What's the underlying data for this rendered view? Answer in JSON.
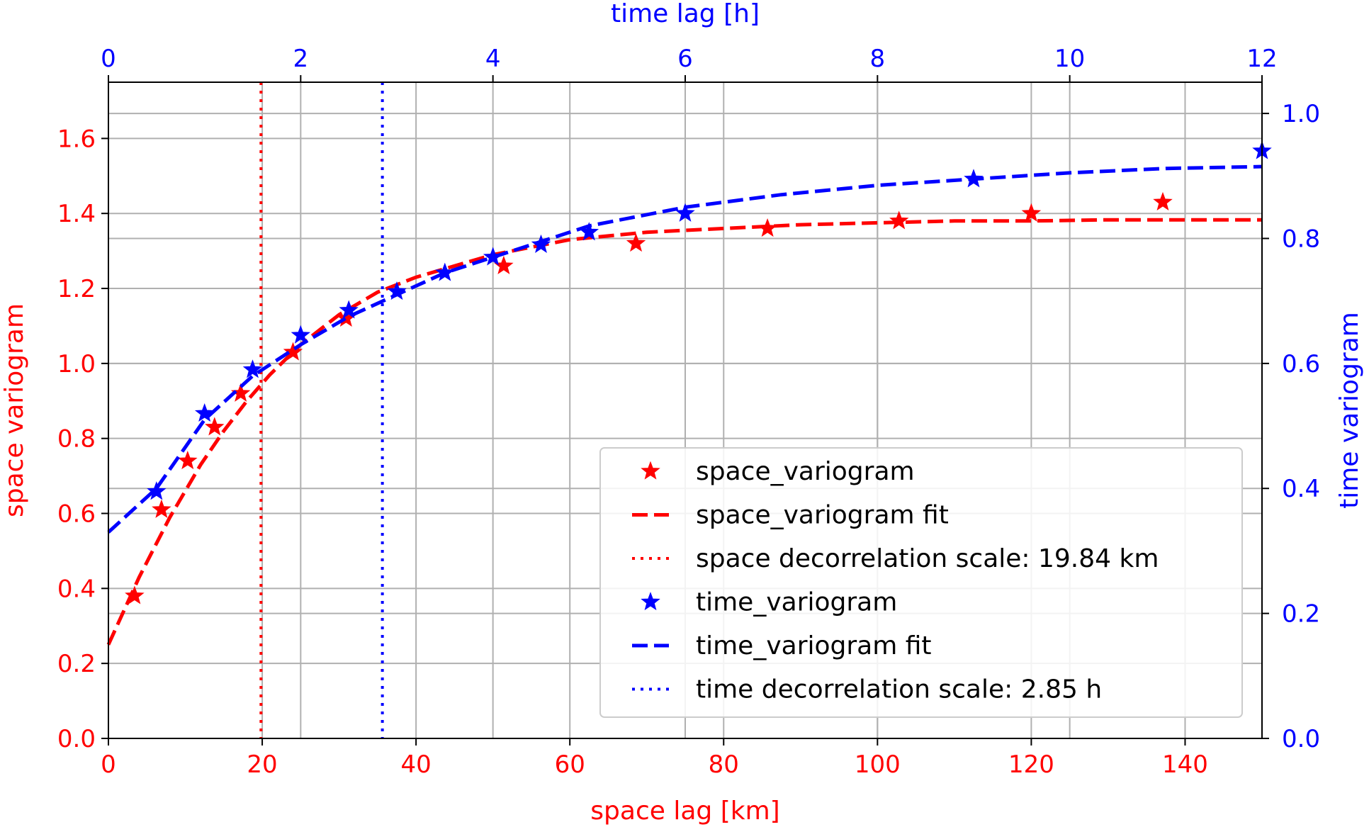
{
  "chart_data": {
    "type": "line",
    "grid": true,
    "legend_placement": "lower-right",
    "colors": {
      "space": "#ff0000",
      "time": "#0000ff",
      "grid": "#b0b0b0"
    },
    "axes": {
      "x_bottom": {
        "label": "space lag [km]",
        "lim": [
          0,
          150
        ],
        "ticks": [
          0,
          20,
          40,
          60,
          80,
          100,
          120,
          140
        ],
        "color": "#ff0000"
      },
      "x_top": {
        "label": "time lag [h]",
        "lim": [
          0,
          12
        ],
        "ticks": [
          0,
          2,
          4,
          6,
          8,
          10,
          12
        ],
        "color": "#0000ff"
      },
      "y_left": {
        "label": "space variogram",
        "lim": [
          0,
          1.75
        ],
        "ticks": [
          0.0,
          0.2,
          0.4,
          0.6,
          0.8,
          1.0,
          1.2,
          1.4,
          1.6
        ],
        "color": "#ff0000"
      },
      "y_right": {
        "label": "time variogram",
        "lim": [
          0,
          1.05
        ],
        "ticks": [
          0.0,
          0.2,
          0.4,
          0.6,
          0.8,
          1.0
        ],
        "color": "#0000ff"
      }
    },
    "series": [
      {
        "name": "space_variogram",
        "axes": "space",
        "style": "markers",
        "x": [
          3.4,
          6.9,
          10.3,
          13.8,
          17.2,
          24.0,
          30.9,
          51.4,
          68.6,
          85.7,
          102.8,
          120.0,
          137.1
        ],
        "y": [
          0.38,
          0.61,
          0.74,
          0.83,
          0.92,
          1.03,
          1.12,
          1.26,
          1.32,
          1.36,
          1.38,
          1.4,
          1.43
        ]
      },
      {
        "name": "space_variogram fit",
        "axes": "space",
        "style": "dashed",
        "x": [
          0,
          2,
          4,
          6,
          8,
          10,
          12,
          15,
          18,
          21,
          25,
          30,
          35,
          40,
          45,
          50,
          55,
          60,
          65,
          70,
          80,
          90,
          100,
          110,
          120,
          130,
          140,
          150
        ],
        "y": [
          0.25,
          0.34,
          0.43,
          0.51,
          0.59,
          0.66,
          0.73,
          0.82,
          0.9,
          0.97,
          1.05,
          1.13,
          1.19,
          1.23,
          1.26,
          1.29,
          1.31,
          1.33,
          1.34,
          1.35,
          1.36,
          1.37,
          1.375,
          1.38,
          1.38,
          1.383,
          1.383,
          1.383
        ]
      },
      {
        "name": "space decorrelation scale: 19.84 km",
        "axes": "space",
        "style": "dotted-vline",
        "x_value": 19.84
      },
      {
        "name": "time_variogram",
        "axes": "time",
        "style": "markers",
        "x": [
          0.5,
          1.0,
          1.5,
          2.0,
          2.5,
          3.0,
          3.5,
          4.0,
          4.5,
          5.0,
          6.0,
          9.0,
          12.0
        ],
        "y": [
          0.395,
          0.52,
          0.59,
          0.645,
          0.685,
          0.715,
          0.745,
          0.77,
          0.79,
          0.81,
          0.84,
          0.895,
          0.94
        ]
      },
      {
        "name": "time_variogram fit",
        "axes": "time",
        "style": "dashed",
        "x": [
          0,
          0.5,
          1.0,
          1.5,
          2.0,
          2.5,
          3.0,
          3.5,
          4.0,
          4.5,
          5.0,
          6.0,
          7.0,
          8.0,
          9.0,
          10.0,
          11.0,
          12.0
        ],
        "y": [
          0.33,
          0.4,
          0.51,
          0.58,
          0.63,
          0.675,
          0.71,
          0.745,
          0.77,
          0.795,
          0.82,
          0.85,
          0.87,
          0.885,
          0.895,
          0.905,
          0.912,
          0.915
        ]
      },
      {
        "name": "time decorrelation scale: 2.85 h",
        "axes": "time",
        "style": "dotted-vline",
        "x_value": 2.85
      }
    ]
  }
}
